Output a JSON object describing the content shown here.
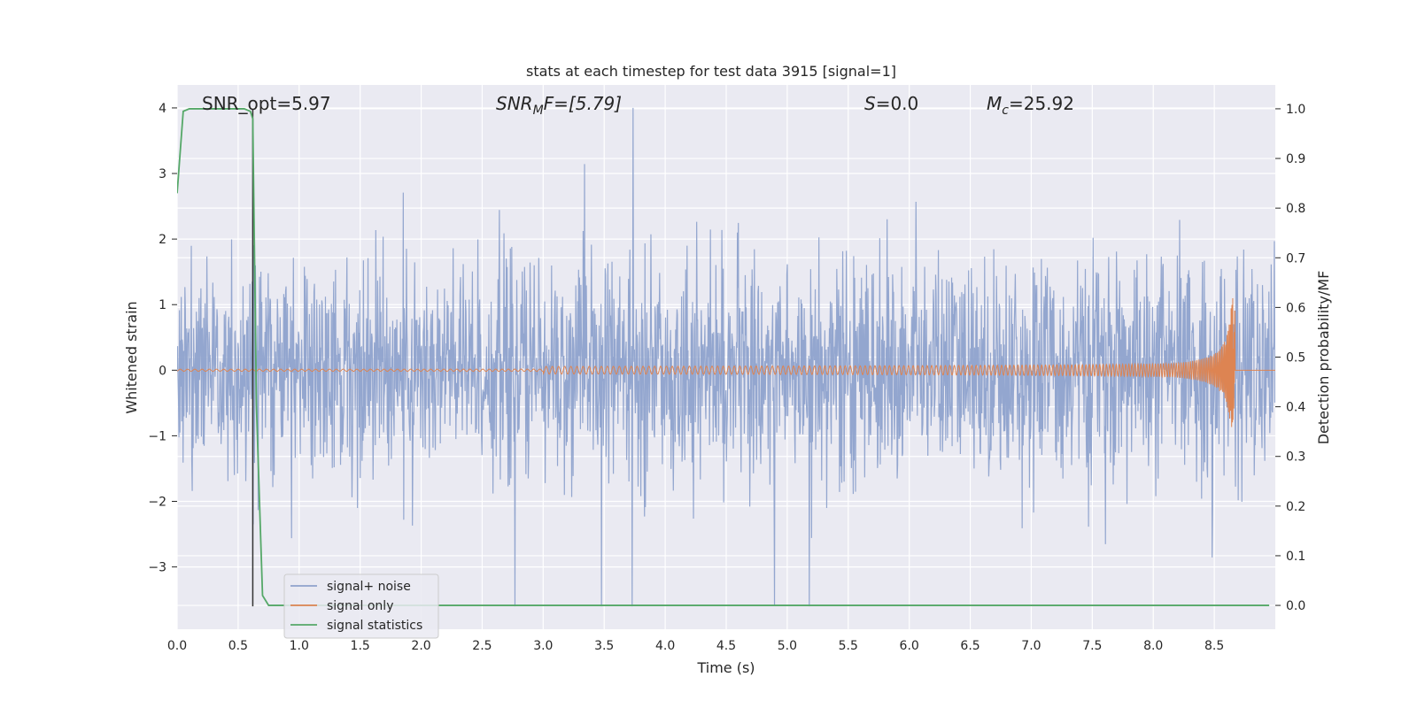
{
  "chart_data": {
    "type": "line",
    "title": "stats at each timestep for test data 3915 [signal=1]",
    "xlabel": "Time (s)",
    "ylabel": "Whitened strain",
    "ylabel_right": "Detection probability/MF",
    "xlim": [
      0.0,
      9.0
    ],
    "ylim": [
      -3.95,
      4.35
    ],
    "ylim_right": [
      -0.048,
      1.048
    ],
    "x_ticks": [
      "0.0",
      "0.5",
      "1.0",
      "1.5",
      "2.0",
      "2.5",
      "3.0",
      "3.5",
      "4.0",
      "4.5",
      "5.0",
      "5.5",
      "6.0",
      "6.5",
      "7.0",
      "7.5",
      "8.0",
      "8.5"
    ],
    "y_ticks": [
      "4",
      "3",
      "2",
      "1",
      "0",
      "−1",
      "−2",
      "−3"
    ],
    "y_ticks_right": [
      "1.0",
      "0.9",
      "0.8",
      "0.7",
      "0.6",
      "0.5",
      "0.4",
      "0.3",
      "0.2",
      "0.1",
      "0.0"
    ],
    "grid": true,
    "legend_position": "lower-left",
    "annotations": {
      "snr_opt": "SNR_opt=5.97",
      "snr_mf_label": "SNR",
      "snr_mf_sub": "M",
      "snr_mf_rest": "F=[5.79]",
      "s_label": "S",
      "s_rest": "=0.0",
      "mc_label": "M",
      "mc_sub": "c",
      "mc_rest": "=25.92"
    },
    "vline_x": 0.62,
    "series": [
      {
        "name": "signal+ noise",
        "color": "#8ea2cc",
        "axis": "left",
        "description_values": "whitened noise, amplitude roughly within [-3.6, 4.0]"
      },
      {
        "name": "signal only",
        "color": "#dd8452",
        "axis": "left",
        "chirp_end": 8.67,
        "chirp_peak_amplitude": 1.1
      },
      {
        "name": "signal statistics",
        "color": "#55a868",
        "axis": "right",
        "x": [
          0.0,
          0.05,
          0.1,
          0.2,
          0.3,
          0.4,
          0.5,
          0.55,
          0.6,
          0.62,
          0.65,
          0.7,
          0.75,
          1.0,
          2.0,
          4.0,
          6.0,
          8.0,
          8.95
        ],
        "values": [
          0.83,
          0.995,
          1.0,
          1.0,
          1.0,
          1.0,
          1.0,
          1.0,
          0.995,
          0.98,
          0.4,
          0.02,
          0.0,
          0.0,
          0.0,
          0.0,
          0.0,
          0.0,
          0.0
        ]
      }
    ]
  }
}
